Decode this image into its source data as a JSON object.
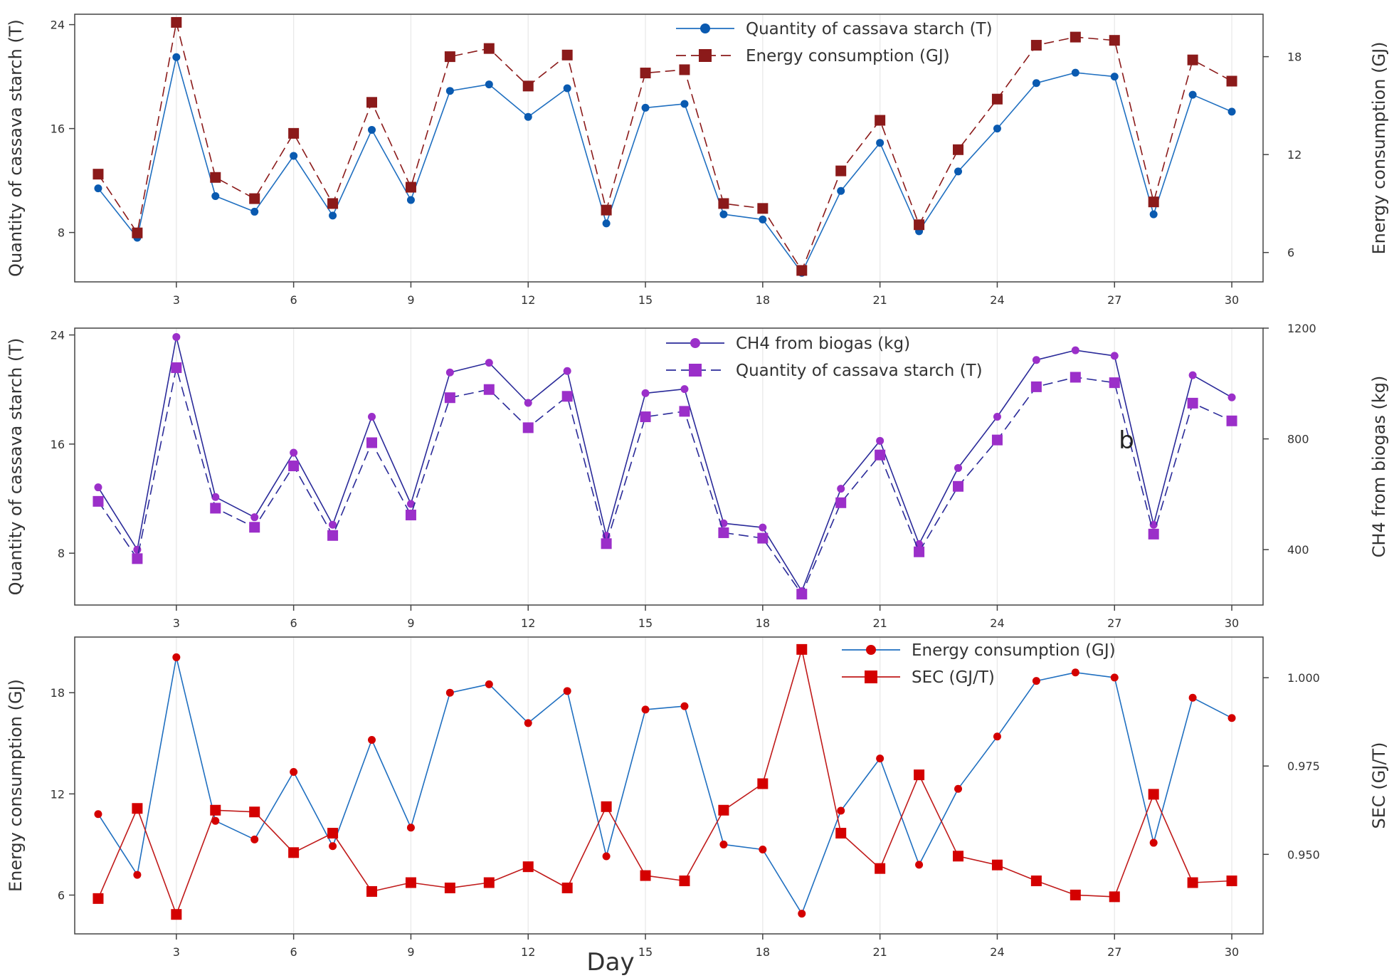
{
  "figure": {
    "xlabel": "Day",
    "annotation": "b"
  },
  "colors": {
    "blue": "#1f6fc0",
    "blue_marker": "#0a5ab0",
    "darkred": "#8b1a1a",
    "purple": "#9b2fc9",
    "navy": "#2a2a99",
    "red": "#d40000",
    "axis": "#444444",
    "grid": "#e9e9e9"
  },
  "chart_data": [
    {
      "type": "line",
      "title": "",
      "xlabel": "",
      "ylabel": "Quantity of cassava starch (T)",
      "y2label": "Energy consumption (GJ)",
      "x": [
        1,
        2,
        3,
        4,
        5,
        6,
        7,
        8,
        9,
        10,
        11,
        12,
        13,
        14,
        15,
        16,
        17,
        18,
        19,
        20,
        21,
        22,
        23,
        24,
        25,
        26,
        27,
        28,
        29,
        30
      ],
      "xlim": [
        0.4,
        30.8
      ],
      "xticks": [
        "3",
        "6",
        "9",
        "12",
        "15",
        "18",
        "21",
        "24",
        "27",
        "30"
      ],
      "ylim": [
        4.2,
        24.8
      ],
      "yticks": [
        "8",
        "16",
        "24"
      ],
      "y2lim": [
        4.2,
        20.6
      ],
      "y2ticks": [
        "6",
        "12",
        "18"
      ],
      "legend_position": "top-center",
      "series": [
        {
          "name": "Quantity of cassava starch (T)",
          "axis": "left",
          "marker": "circle",
          "style": "solid",
          "color": "#1f6fc0",
          "values": [
            11.4,
            7.6,
            21.5,
            10.8,
            9.6,
            13.9,
            9.3,
            15.9,
            10.5,
            18.9,
            19.4,
            16.9,
            19.1,
            8.7,
            17.6,
            17.9,
            9.4,
            9.0,
            4.9,
            11.2,
            14.9,
            8.1,
            12.7,
            16.0,
            19.5,
            20.3,
            20.0,
            9.4,
            18.6,
            17.3
          ]
        },
        {
          "name": "Energy consumption (GJ)",
          "axis": "right",
          "marker": "square",
          "style": "dashed",
          "color": "#8b1a1a",
          "values": [
            10.8,
            7.2,
            20.1,
            10.6,
            9.3,
            13.3,
            9.0,
            15.2,
            10.0,
            18.0,
            18.5,
            16.2,
            18.1,
            8.6,
            17.0,
            17.2,
            9.0,
            8.7,
            4.9,
            11.0,
            14.1,
            7.7,
            12.3,
            15.4,
            18.7,
            19.2,
            19.0,
            9.1,
            17.8,
            16.5
          ]
        }
      ]
    },
    {
      "type": "line",
      "title": "",
      "xlabel": "",
      "ylabel": "Quantity of cassava starch (T)",
      "y2label": "CH4 from biogas (kg)",
      "x": [
        1,
        2,
        3,
        4,
        5,
        6,
        7,
        8,
        9,
        10,
        11,
        12,
        13,
        14,
        15,
        16,
        17,
        18,
        19,
        20,
        21,
        22,
        23,
        24,
        25,
        26,
        27,
        28,
        29,
        30
      ],
      "xlim": [
        0.4,
        30.8
      ],
      "xticks": [
        "3",
        "6",
        "9",
        "12",
        "15",
        "18",
        "21",
        "24",
        "27",
        "30"
      ],
      "ylim": [
        4.2,
        24.5
      ],
      "yticks": [
        "8",
        "16",
        "24"
      ],
      "y2lim": [
        200,
        1200
      ],
      "y2ticks": [
        "400",
        "800",
        "1200"
      ],
      "legend_position": "top-center",
      "series": [
        {
          "name": "CH4 from biogas (kg)",
          "axis": "right",
          "marker": "circle",
          "style": "solid",
          "color": "#9b2fc9",
          "line_color": "#2a2a99",
          "values": [
            625,
            400,
            1168,
            590,
            517,
            750,
            490,
            880,
            565,
            1040,
            1075,
            930,
            1045,
            450,
            965,
            980,
            495,
            480,
            250,
            620,
            793,
            420,
            695,
            880,
            1085,
            1120,
            1100,
            490,
            1030,
            950
          ]
        },
        {
          "name": "Quantity of cassava starch (T)",
          "axis": "left",
          "marker": "square",
          "style": "dashed",
          "color": "#9b2fc9",
          "line_color": "#2a2a99",
          "values": [
            11.8,
            7.6,
            21.6,
            11.3,
            9.9,
            14.4,
            9.3,
            16.1,
            10.8,
            19.4,
            20.0,
            17.2,
            19.5,
            8.7,
            18.0,
            18.4,
            9.5,
            9.1,
            5.0,
            11.7,
            15.2,
            8.1,
            12.9,
            16.3,
            20.2,
            20.9,
            20.5,
            9.4,
            19.0,
            17.7
          ]
        }
      ]
    },
    {
      "type": "line",
      "title": "",
      "xlabel": "Day",
      "ylabel": "Energy consumption (GJ)",
      "y2label": "SEC (GJ/T)",
      "x": [
        1,
        2,
        3,
        4,
        5,
        6,
        7,
        8,
        9,
        10,
        11,
        12,
        13,
        14,
        15,
        16,
        17,
        18,
        19,
        20,
        21,
        22,
        23,
        24,
        25,
        26,
        27,
        28,
        29,
        30
      ],
      "xlim": [
        0.4,
        30.8
      ],
      "xticks": [
        "3",
        "6",
        "9",
        "12",
        "15",
        "18",
        "21",
        "24",
        "27",
        "30"
      ],
      "ylim": [
        3.7,
        21.3
      ],
      "yticks": [
        "6",
        "12",
        "18"
      ],
      "y2lim": [
        0.9275,
        1.0115
      ],
      "y2ticks": [
        "0.950",
        "0.975",
        "1.000"
      ],
      "legend_position": "top-center",
      "series": [
        {
          "name": "Energy consumption (GJ)",
          "axis": "left",
          "marker": "circle",
          "style": "solid",
          "color": "#d40000",
          "line_color": "#1f6fc0",
          "values": [
            10.8,
            7.2,
            20.1,
            10.4,
            9.3,
            13.3,
            8.9,
            15.2,
            10.0,
            18.0,
            18.5,
            16.2,
            18.1,
            8.3,
            17.0,
            17.2,
            9.0,
            8.7,
            4.9,
            11.0,
            14.1,
            7.8,
            12.3,
            15.4,
            18.7,
            19.2,
            18.9,
            9.1,
            17.7,
            16.5
          ]
        },
        {
          "name": "SEC (GJ/T)",
          "axis": "right",
          "marker": "square",
          "style": "solid",
          "color": "#d40000",
          "line_color": "#c01a1a",
          "values": [
            0.9375,
            0.963,
            0.933,
            0.9625,
            0.962,
            0.9505,
            0.956,
            0.9395,
            0.942,
            0.9405,
            0.942,
            0.9465,
            0.9405,
            0.9635,
            0.944,
            0.9425,
            0.9625,
            0.97,
            1.008,
            0.956,
            0.946,
            0.9725,
            0.9495,
            0.947,
            0.9425,
            0.9385,
            0.938,
            0.967,
            0.942,
            0.9425
          ]
        }
      ]
    }
  ]
}
